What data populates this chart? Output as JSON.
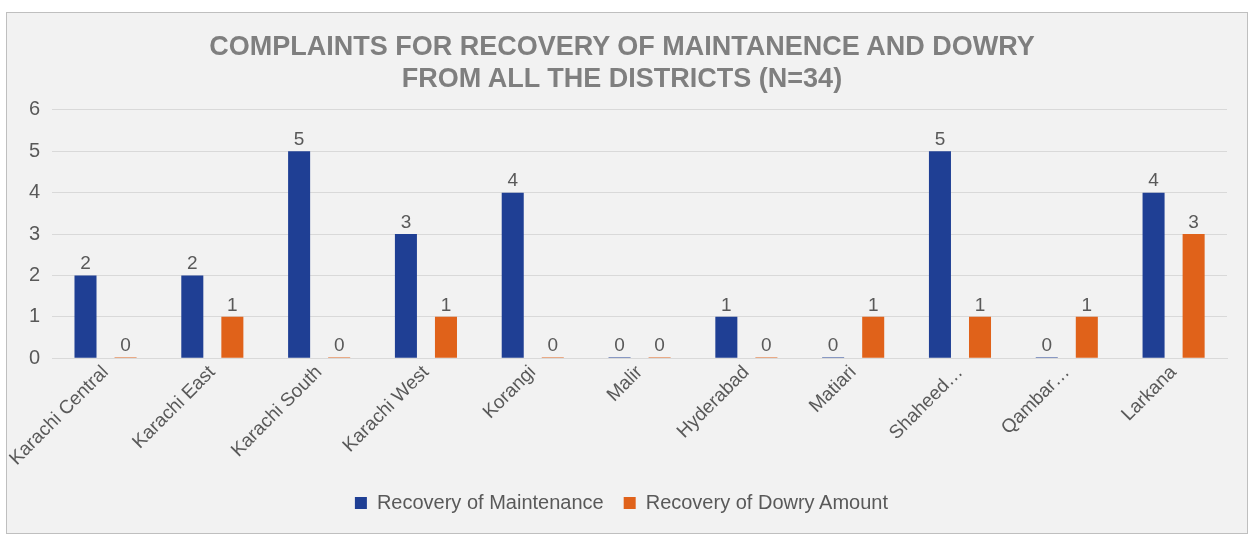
{
  "chart_data": {
    "type": "bar",
    "title": "COMPLAINTS FOR RECOVERY OF MAINTANENCE AND DOWRY FROM ALL THE DISTRICTS (N=34)",
    "categories": [
      "Karachi Central",
      "Karachi East",
      "Karachi South",
      "Karachi West",
      "Korangi",
      "Malir",
      "Hyderabad",
      "Matiari",
      "Shaheed…",
      "Qambar…",
      "Larkana"
    ],
    "series": [
      {
        "name": "Recovery of Maintenance",
        "color": "#1f3f94",
        "values": [
          2,
          2,
          5,
          3,
          4,
          0,
          1,
          0,
          5,
          0,
          4
        ]
      },
      {
        "name": "Recovery of Dowry Amount",
        "color": "#e0621a",
        "values": [
          0,
          1,
          0,
          1,
          0,
          0,
          0,
          1,
          1,
          1,
          3
        ]
      }
    ],
    "ylim": [
      0,
      6
    ],
    "yticks": [
      0,
      1,
      2,
      3,
      4,
      5,
      6
    ],
    "grid": "y",
    "legend": "bottom",
    "data_labels": true
  }
}
